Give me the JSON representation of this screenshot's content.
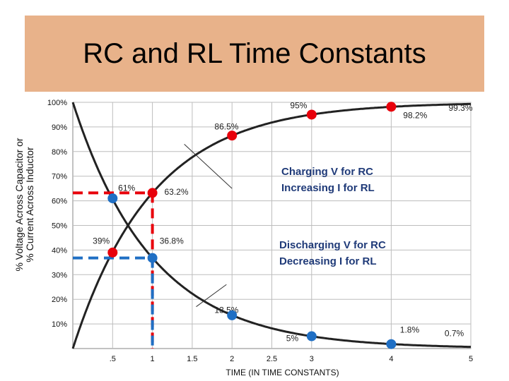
{
  "title": "RC and RL Time Constants",
  "y_axis_label_line1": "% Voltage Across Capacitor or",
  "y_axis_label_line2": "% Current Across Inductor",
  "colors": {
    "banner": "#e8b28a",
    "red": "#e8000b",
    "blue": "#1f6fc4",
    "curve": "#222222"
  },
  "chart_data": {
    "type": "line",
    "xlabel": "TIME (IN TIME CONSTANTS)",
    "ylabel": "% Voltage Across Capacitor or % Current Across Inductor",
    "xlim": [
      0,
      5
    ],
    "ylim": [
      0,
      100
    ],
    "x_ticks": [
      ".5",
      "1",
      "1.5",
      "2",
      "2.5",
      "3",
      "4",
      "5"
    ],
    "x_tick_values": [
      0.5,
      1,
      1.5,
      2,
      2.5,
      3,
      4,
      5
    ],
    "y_ticks": [
      "100%",
      "90%",
      "80%",
      "70%",
      "60%",
      "50%",
      "40%",
      "30%",
      "20%",
      "10%"
    ],
    "y_tick_values": [
      100,
      90,
      80,
      70,
      60,
      50,
      40,
      30,
      20,
      10
    ],
    "series": [
      {
        "name": "Charging V for RC / Increasing I for RL",
        "marker_color": "red",
        "x": [
          0.5,
          1,
          2,
          3,
          4
        ],
        "y": [
          39,
          63.2,
          86.5,
          95,
          98.2
        ]
      },
      {
        "name": "Discharging V for RC / Decreasing I for RL",
        "marker_color": "blue",
        "x": [
          0.5,
          1,
          2,
          3,
          4
        ],
        "y": [
          61,
          36.8,
          13.5,
          5,
          1.8
        ]
      }
    ],
    "annotations": [
      {
        "text": "95%",
        "x": 2.73,
        "y": 97.5
      },
      {
        "text": "98.2%",
        "x": 4.15,
        "y": 93.5
      },
      {
        "text": "99.3%",
        "x": 4.72,
        "y": 96.5
      },
      {
        "text": "86.5%",
        "x": 1.78,
        "y": 89.0
      },
      {
        "text": "61%",
        "x": 0.57,
        "y": 64.0
      },
      {
        "text": "63.2%",
        "x": 1.15,
        "y": 62.5
      },
      {
        "text": "39%",
        "x": 0.25,
        "y": 42.5
      },
      {
        "text": "36.8%",
        "x": 1.09,
        "y": 42.5
      },
      {
        "text": "13.5%",
        "x": 1.78,
        "y": 14.5
      },
      {
        "text": "5%",
        "x": 2.68,
        "y": 3.0
      },
      {
        "text": "1.8%",
        "x": 4.11,
        "y": 6.5
      },
      {
        "text": "0.7%",
        "x": 4.67,
        "y": 5.0
      }
    ],
    "callouts": [
      {
        "line1": "Charging V for RC",
        "line2": "Increasing I for RL"
      },
      {
        "line1": "Discharging V for RC",
        "line2": "Decreasing I for RL"
      }
    ],
    "guides": [
      {
        "color": "red",
        "x": 1,
        "y": 63.2
      },
      {
        "color": "blue",
        "x": 1,
        "y": 36.8
      }
    ]
  }
}
